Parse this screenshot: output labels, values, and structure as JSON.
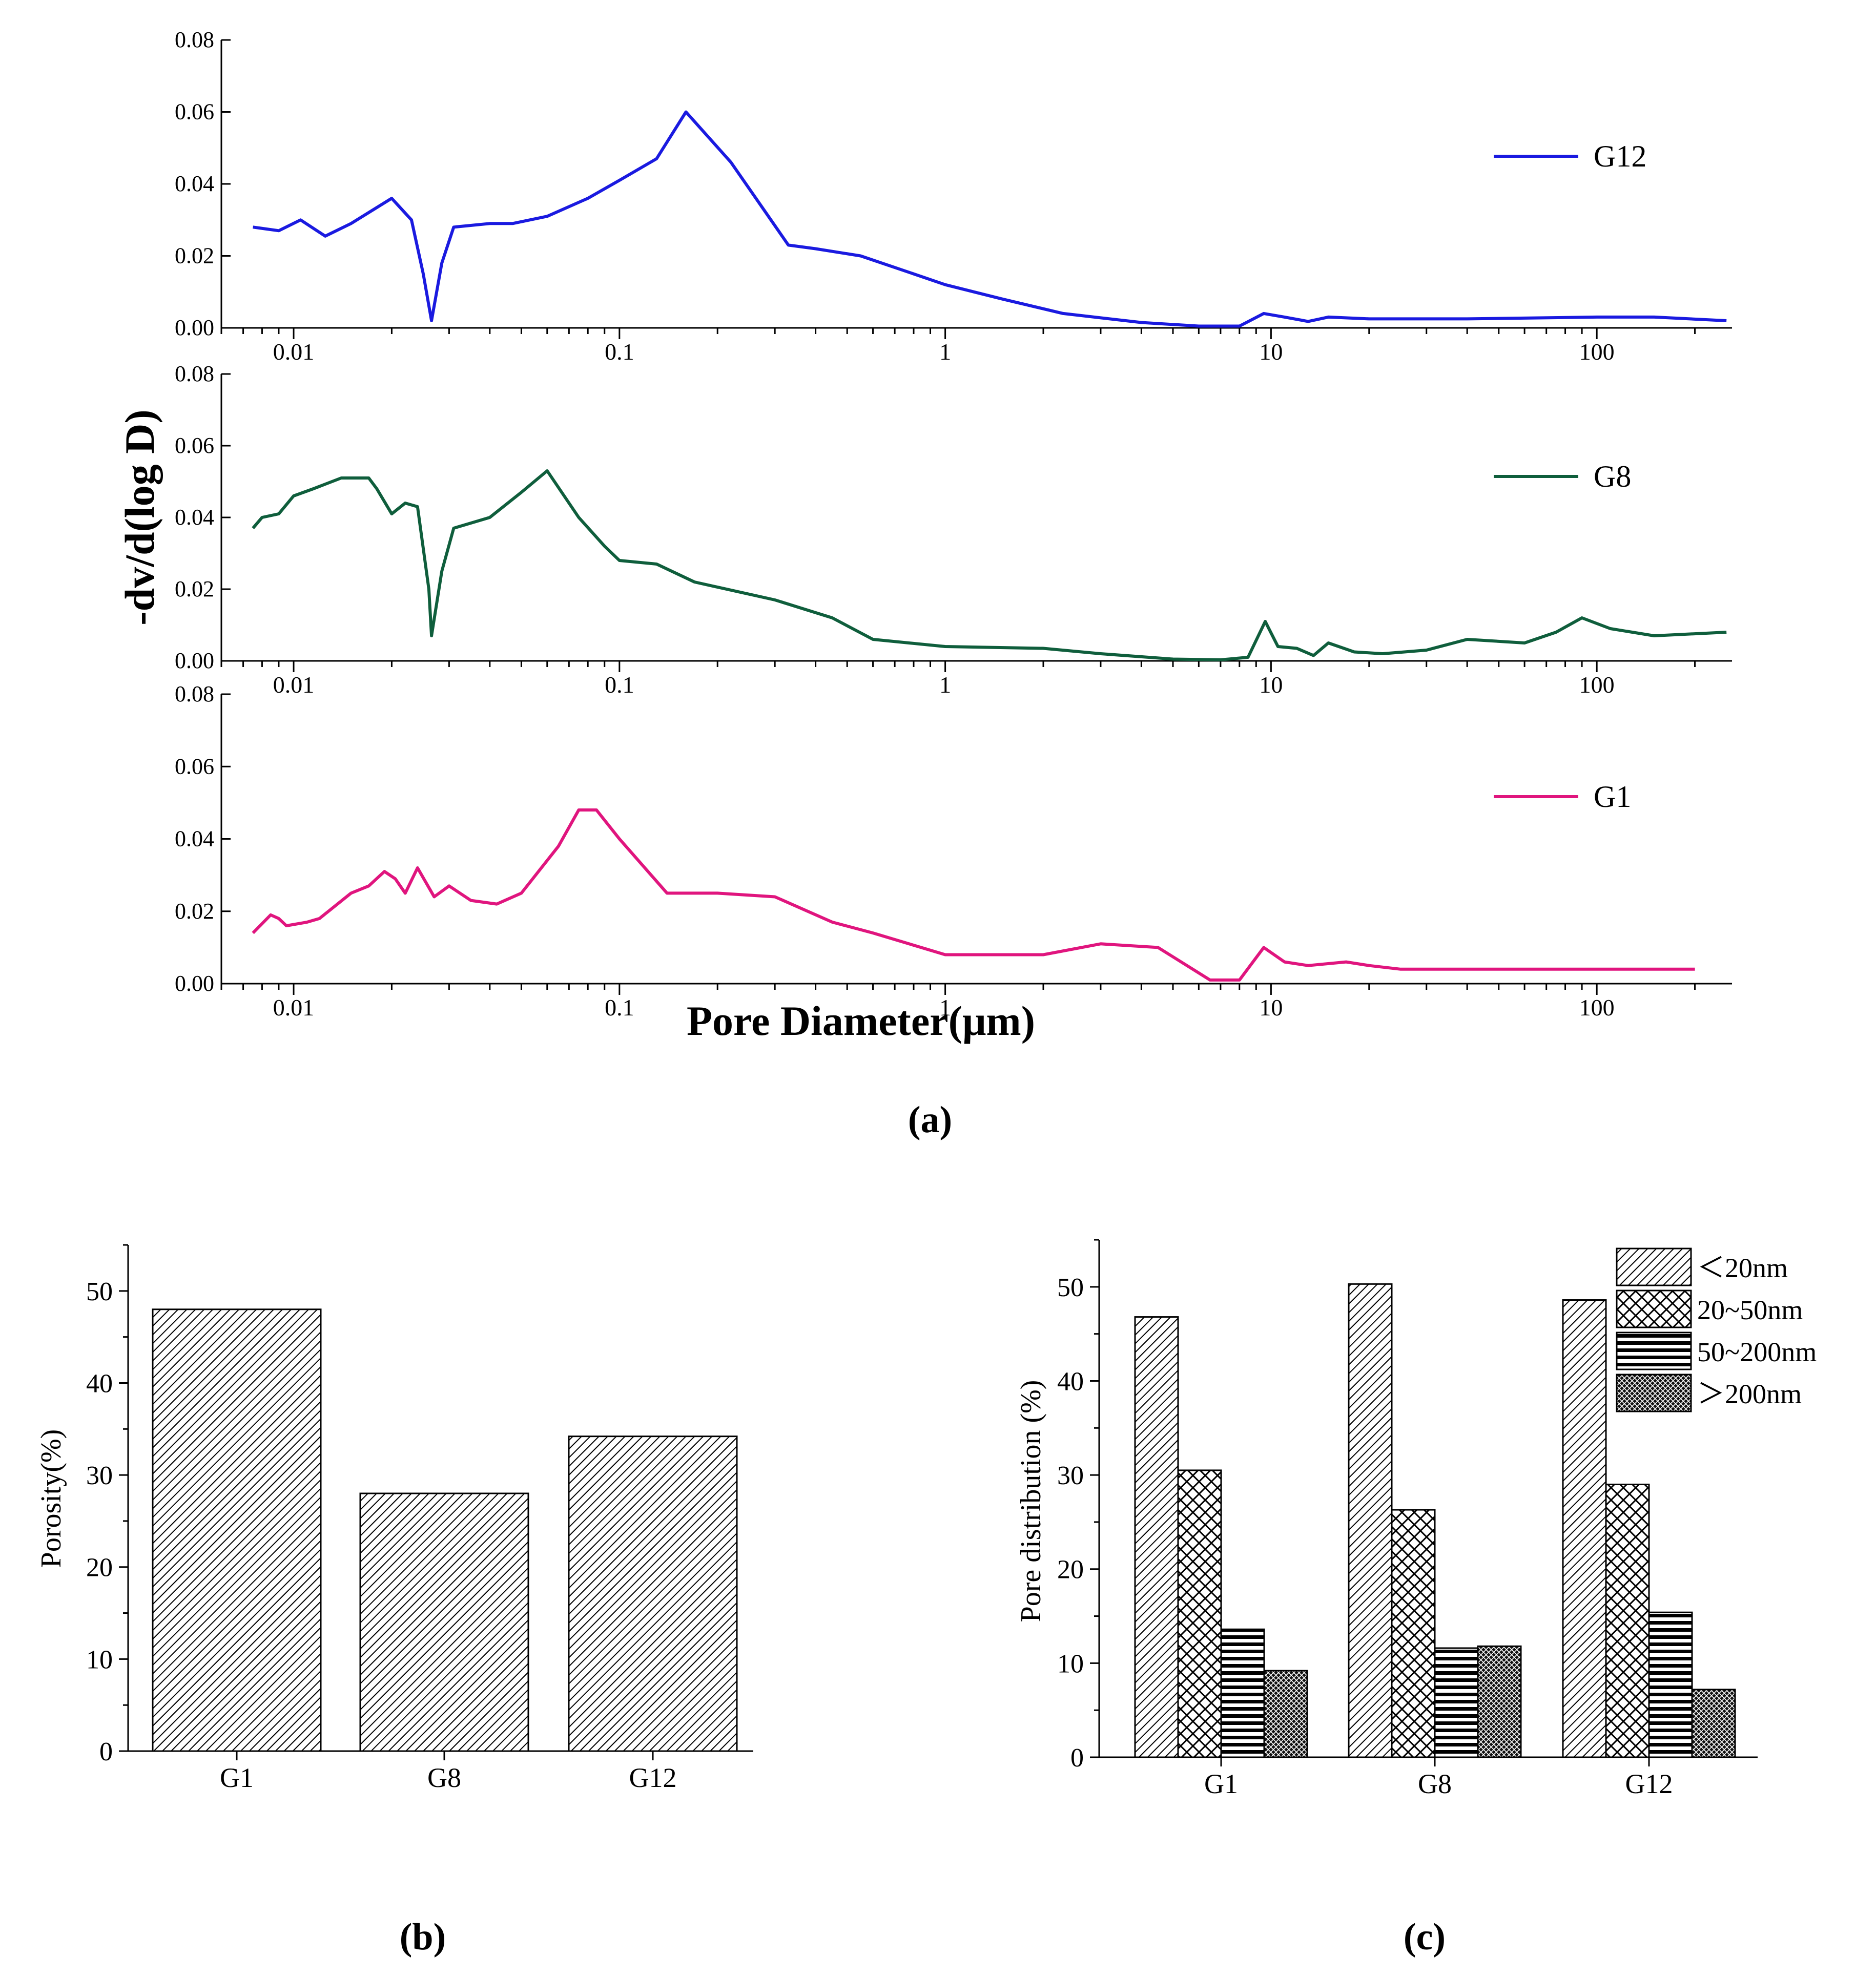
{
  "panel_labels": {
    "a": "(a)",
    "b": "(b)",
    "c": "(c)"
  },
  "colors": {
    "G12": "#1a1ae0",
    "G8": "#0f5e3c",
    "G1": "#e0157e",
    "axis": "#000000"
  },
  "chart_data": [
    {
      "id": "a",
      "type": "line",
      "xscale": "log",
      "xlim": [
        0.006,
        260
      ],
      "ylim": [
        0,
        0.08
      ],
      "xticks": [
        0.01,
        0.1,
        1,
        10,
        100
      ],
      "xtick_labels": [
        "0.01",
        "0.1",
        "1",
        "10",
        "100"
      ],
      "yticks": [
        0,
        0.02,
        0.04,
        0.06,
        0.08
      ],
      "ytick_labels": [
        "0.00",
        "0.02",
        "0.04",
        "0.06",
        "0.08"
      ],
      "xlabel": "Pore Diameter(μm)",
      "ylabel": "-dv/d(log D)",
      "series": [
        {
          "name": "G12",
          "color_key": "G12",
          "points": [
            [
              0.0075,
              0.028
            ],
            [
              0.009,
              0.027
            ],
            [
              0.0105,
              0.03
            ],
            [
              0.0125,
              0.0255
            ],
            [
              0.015,
              0.029
            ],
            [
              0.02,
              0.036
            ],
            [
              0.023,
              0.03
            ],
            [
              0.025,
              0.015
            ],
            [
              0.0265,
              0.002
            ],
            [
              0.0285,
              0.018
            ],
            [
              0.031,
              0.028
            ],
            [
              0.04,
              0.029
            ],
            [
              0.047,
              0.029
            ],
            [
              0.06,
              0.031
            ],
            [
              0.08,
              0.036
            ],
            [
              0.1,
              0.041
            ],
            [
              0.13,
              0.047
            ],
            [
              0.16,
              0.06
            ],
            [
              0.22,
              0.046
            ],
            [
              0.33,
              0.023
            ],
            [
              0.4,
              0.022
            ],
            [
              0.55,
              0.02
            ],
            [
              0.8,
              0.015
            ],
            [
              1,
              0.012
            ],
            [
              1.5,
              0.008
            ],
            [
              2.3,
              0.004
            ],
            [
              4,
              0.0015
            ],
            [
              6,
              0.0005
            ],
            [
              8,
              0.0005
            ],
            [
              9.5,
              0.004
            ],
            [
              11,
              0.003
            ],
            [
              13,
              0.0018
            ],
            [
              15,
              0.003
            ],
            [
              20,
              0.0025
            ],
            [
              40,
              0.0025
            ],
            [
              100,
              0.003
            ],
            [
              150,
              0.003
            ],
            [
              250,
              0.002
            ]
          ]
        },
        {
          "name": "G8",
          "color_key": "G8",
          "points": [
            [
              0.0075,
              0.037
            ],
            [
              0.008,
              0.04
            ],
            [
              0.009,
              0.041
            ],
            [
              0.01,
              0.046
            ],
            [
              0.0115,
              0.048
            ],
            [
              0.014,
              0.051
            ],
            [
              0.017,
              0.051
            ],
            [
              0.018,
              0.048
            ],
            [
              0.02,
              0.041
            ],
            [
              0.022,
              0.044
            ],
            [
              0.024,
              0.043
            ],
            [
              0.026,
              0.02
            ],
            [
              0.0265,
              0.007
            ],
            [
              0.0285,
              0.025
            ],
            [
              0.031,
              0.037
            ],
            [
              0.04,
              0.04
            ],
            [
              0.05,
              0.047
            ],
            [
              0.06,
              0.053
            ],
            [
              0.075,
              0.04
            ],
            [
              0.09,
              0.032
            ],
            [
              0.1,
              0.028
            ],
            [
              0.13,
              0.027
            ],
            [
              0.17,
              0.022
            ],
            [
              0.3,
              0.017
            ],
            [
              0.45,
              0.012
            ],
            [
              0.6,
              0.006
            ],
            [
              1,
              0.004
            ],
            [
              2,
              0.0035
            ],
            [
              3,
              0.002
            ],
            [
              5,
              0.0005
            ],
            [
              7,
              0.0003
            ],
            [
              8.5,
              0.001
            ],
            [
              9.6,
              0.011
            ],
            [
              10.5,
              0.004
            ],
            [
              12,
              0.0035
            ],
            [
              13.5,
              0.0015
            ],
            [
              15,
              0.005
            ],
            [
              18,
              0.0025
            ],
            [
              22,
              0.002
            ],
            [
              30,
              0.003
            ],
            [
              40,
              0.006
            ],
            [
              60,
              0.005
            ],
            [
              75,
              0.008
            ],
            [
              90,
              0.012
            ],
            [
              110,
              0.009
            ],
            [
              150,
              0.007
            ],
            [
              250,
              0.008
            ]
          ]
        },
        {
          "name": "G1",
          "color_key": "G1",
          "points": [
            [
              0.0075,
              0.014
            ],
            [
              0.0085,
              0.019
            ],
            [
              0.009,
              0.018
            ],
            [
              0.0095,
              0.016
            ],
            [
              0.011,
              0.017
            ],
            [
              0.012,
              0.018
            ],
            [
              0.015,
              0.025
            ],
            [
              0.017,
              0.027
            ],
            [
              0.019,
              0.031
            ],
            [
              0.0205,
              0.029
            ],
            [
              0.022,
              0.025
            ],
            [
              0.024,
              0.032
            ],
            [
              0.027,
              0.024
            ],
            [
              0.03,
              0.027
            ],
            [
              0.035,
              0.023
            ],
            [
              0.042,
              0.022
            ],
            [
              0.05,
              0.025
            ],
            [
              0.065,
              0.038
            ],
            [
              0.075,
              0.048
            ],
            [
              0.085,
              0.048
            ],
            [
              0.1,
              0.04
            ],
            [
              0.14,
              0.025
            ],
            [
              0.16,
              0.025
            ],
            [
              0.2,
              0.025
            ],
            [
              0.3,
              0.024
            ],
            [
              0.45,
              0.017
            ],
            [
              0.6,
              0.014
            ],
            [
              1,
              0.008
            ],
            [
              2,
              0.008
            ],
            [
              3,
              0.011
            ],
            [
              4.5,
              0.01
            ],
            [
              6.5,
              0.001
            ],
            [
              8,
              0.001
            ],
            [
              9.5,
              0.01
            ],
            [
              11,
              0.006
            ],
            [
              13,
              0.005
            ],
            [
              17,
              0.006
            ],
            [
              20,
              0.005
            ],
            [
              25,
              0.004
            ],
            [
              35,
              0.004
            ],
            [
              55,
              0.004
            ],
            [
              100,
              0.004
            ],
            [
              200,
              0.004
            ]
          ]
        }
      ]
    },
    {
      "id": "b",
      "type": "bar",
      "categories": [
        "G1",
        "G8",
        "G12"
      ],
      "values": [
        48,
        28,
        34.2
      ],
      "ylim": [
        0,
        55
      ],
      "yticks": [
        0,
        10,
        20,
        30,
        40,
        50
      ],
      "ylabel": "Porosity(%)",
      "xlabel": ""
    },
    {
      "id": "c",
      "type": "bar",
      "categories": [
        "G1",
        "G8",
        "G12"
      ],
      "series": [
        {
          "name": "＜20nm",
          "pattern": "diag",
          "values": [
            46.8,
            50.3,
            48.6
          ]
        },
        {
          "name": "20~50nm",
          "pattern": "cross",
          "values": [
            30.5,
            26.3,
            29
          ]
        },
        {
          "name": "50~200nm",
          "pattern": "horiz",
          "values": [
            13.6,
            11.6,
            15.4
          ]
        },
        {
          "name": "＞200nm",
          "pattern": "dense",
          "values": [
            9.2,
            11.8,
            7.2
          ]
        }
      ],
      "ylim": [
        0,
        55
      ],
      "yticks": [
        0,
        10,
        20,
        30,
        40,
        50
      ],
      "ylabel": "Pore distribution (%)",
      "xlabel": ""
    }
  ]
}
